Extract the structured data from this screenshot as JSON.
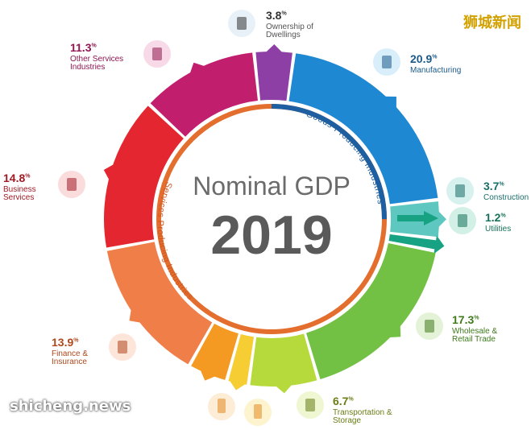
{
  "title": "Nominal GDP",
  "year": "2019",
  "inner_labels": {
    "goods": "Goods-Producing Industries",
    "services": "Services Producing Industries"
  },
  "watermark_top": "狮城新闻",
  "watermark_bottom": "shicheng.news",
  "chart_data": {
    "type": "pie",
    "title": "Nominal GDP 2019",
    "series": [
      {
        "name": "Ownership of Dwellings",
        "label": "Ownership of Dwellings",
        "value": 3.8,
        "color": "#8e3fa6"
      },
      {
        "name": "Manufacturing",
        "label": "Manufacturing",
        "value": 20.9,
        "color": "#1e88d2"
      },
      {
        "name": "Construction",
        "label": "Construction",
        "value": 3.7,
        "color": "#5ec7c0"
      },
      {
        "name": "Utilities",
        "label": "Utilities",
        "value": 1.2,
        "color": "#17a383"
      },
      {
        "name": "Wholesale & Retail Trade",
        "label": "Wholesale & Retail Trade",
        "value": 17.3,
        "color": "#72c044"
      },
      {
        "name": "Transportation & Storage",
        "label": "Transportation & Storage",
        "value": 6.7,
        "color": "#b6d93c"
      },
      {
        "name": "Accommodation",
        "label": "",
        "value": 2.1,
        "color": "#f7cd34"
      },
      {
        "name": "Information & Communications",
        "label": "",
        "value": 3.8,
        "color": "#f49a22"
      },
      {
        "name": "Finance & Insurance",
        "label": "Finance & Insurance",
        "value": 13.9,
        "color": "#f07e48"
      },
      {
        "name": "Business Services",
        "label": "Business Services",
        "value": 14.8,
        "color": "#e3262f"
      },
      {
        "name": "Other Services Industries",
        "label": "Other Services Industries",
        "value": 11.3,
        "color": "#c21e6e"
      }
    ]
  },
  "callouts": [
    {
      "pct": "3.8",
      "unit": "%",
      "name": "Ownership of Dwellings",
      "pct_color": "#333333",
      "name_color": "#555555",
      "icon": "building-icon",
      "icon_bg": "#e8f1f8"
    },
    {
      "pct": "20.9",
      "unit": "%",
      "name": "Manufacturing",
      "pct_color": "#1a5a8a",
      "name_color": "#1a5a8a",
      "icon": "factory-icon",
      "icon_bg": "#d9eefb"
    },
    {
      "pct": "3.7",
      "unit": "%",
      "name": "Construction",
      "pct_color": "#1a6e6a",
      "name_color": "#1a6e6a",
      "icon": "construction-icon",
      "icon_bg": "#d7f1ee"
    },
    {
      "pct": "1.2",
      "unit": "%",
      "name": "Utilities",
      "pct_color": "#15715a",
      "name_color": "#15715a",
      "icon": "lightbulb-icon",
      "icon_bg": "#d3f0e7"
    },
    {
      "pct": "17.3",
      "unit": "%",
      "name": "Wholesale & Retail Trade",
      "pct_color": "#3f7a1c",
      "name_color": "#3f7a1c",
      "icon": "shop-icon",
      "icon_bg": "#e4f3d8"
    },
    {
      "pct": "6.7",
      "unit": "%",
      "name": "Transportation & Storage",
      "pct_color": "#6a7d15",
      "name_color": "#6a7d15",
      "icon": "truck-icon",
      "icon_bg": "#eef6d2"
    },
    {
      "pct": "13.9",
      "unit": "%",
      "name": "Finance & Insurance",
      "pct_color": "#b0471c",
      "name_color": "#b0471c",
      "icon": "umbrella-icon",
      "icon_bg": "#fde5da"
    },
    {
      "pct": "14.8",
      "unit": "%",
      "name": "Business Services",
      "pct_color": "#a01a25",
      "name_color": "#a01a25",
      "icon": "businessman-icon",
      "icon_bg": "#fadcdc"
    },
    {
      "pct": "11.3",
      "unit": "%",
      "name": "Other Services Industries",
      "pct_color": "#8f1650",
      "name_color": "#8f1650",
      "icon": "star-icon",
      "icon_bg": "#f8d9e7"
    }
  ],
  "bottom_icons": [
    {
      "icon": "phone-icon",
      "icon_bg": "#fdecd6"
    },
    {
      "icon": "hotel-icon",
      "icon_bg": "#fdf4cf"
    }
  ]
}
